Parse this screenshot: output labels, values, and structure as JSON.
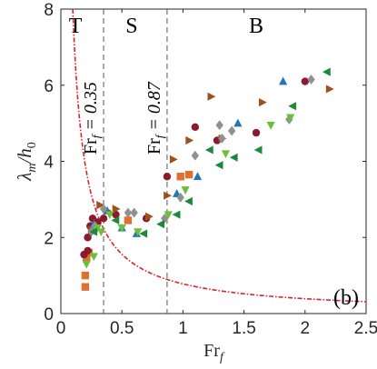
{
  "chart_data": {
    "type": "scatter",
    "xlabel_main": "Fr",
    "xlabel_sub": "f",
    "ylabel_main": "λ",
    "ylabel_sub_m": "m",
    "ylabel_div": "/h",
    "ylabel_sub_0": "0",
    "xlim": [
      0,
      2.5
    ],
    "ylim": [
      0,
      8
    ],
    "x_ticks": [
      0,
      0.5,
      1,
      1.5,
      2,
      2.5
    ],
    "x_tick_labels": [
      "0",
      "0.5",
      "1",
      "1.5",
      "2",
      "2.5"
    ],
    "y_ticks": [
      0,
      2,
      4,
      6,
      8
    ],
    "y_tick_labels": [
      "0",
      "2",
      "4",
      "6",
      "8"
    ],
    "grid": false,
    "panel_label": "(b)",
    "regions": [
      {
        "label": "T",
        "x": 0.12
      },
      {
        "label": "S",
        "x": 0.58
      },
      {
        "label": "B",
        "x": 1.6
      }
    ],
    "vlines": [
      {
        "x": 0.35,
        "text_main": "Fr",
        "text_sub": "f",
        "text_eq": " = 0.35"
      },
      {
        "x": 0.87,
        "text_main": "Fr",
        "text_sub": "f",
        "text_eq": " = 0.87"
      }
    ],
    "curve": {
      "description_coeff": 0.78,
      "x_start": 0.1,
      "x_end": 2.5,
      "color": "#e0202a"
    },
    "series": [
      {
        "marker": "square",
        "color": "#e07030",
        "points": [
          [
            0.2,
            0.7
          ],
          [
            0.2,
            1.0
          ],
          [
            0.21,
            1.45
          ],
          [
            0.23,
            1.6
          ],
          [
            0.26,
            2.3
          ],
          [
            0.55,
            2.45
          ],
          [
            0.98,
            3.6
          ],
          [
            1.05,
            3.65
          ]
        ]
      },
      {
        "marker": "circle",
        "color": "#8b1a2e",
        "points": [
          [
            0.19,
            1.55
          ],
          [
            0.22,
            1.65
          ],
          [
            0.22,
            2.0
          ],
          [
            0.24,
            2.3
          ],
          [
            0.26,
            2.5
          ],
          [
            0.3,
            2.4
          ],
          [
            0.35,
            2.5
          ],
          [
            0.45,
            2.6
          ],
          [
            0.7,
            2.5
          ],
          [
            0.87,
            3.6
          ],
          [
            1.1,
            4.9
          ],
          [
            1.28,
            4.55
          ],
          [
            1.6,
            4.75
          ],
          [
            2.0,
            6.1
          ]
        ]
      },
      {
        "marker": "triangle-right",
        "color": "#a0501a",
        "points": [
          [
            0.25,
            2.2
          ],
          [
            0.32,
            2.85
          ],
          [
            0.38,
            2.7
          ],
          [
            0.45,
            2.75
          ],
          [
            0.72,
            2.55
          ],
          [
            0.87,
            3.1
          ],
          [
            0.92,
            4.05
          ],
          [
            1.05,
            4.55
          ],
          [
            1.23,
            5.7
          ],
          [
            1.32,
            4.6
          ],
          [
            1.65,
            5.55
          ],
          [
            2.2,
            5.9
          ]
        ]
      },
      {
        "marker": "triangle-up",
        "color": "#1f77b4",
        "points": [
          [
            0.27,
            2.35
          ],
          [
            0.38,
            2.7
          ],
          [
            0.5,
            2.25
          ],
          [
            0.62,
            2.1
          ],
          [
            0.95,
            3.15
          ],
          [
            1.12,
            3.6
          ],
          [
            1.45,
            5.0
          ],
          [
            1.82,
            6.1
          ]
        ]
      },
      {
        "marker": "diamond",
        "color": "#909090",
        "points": [
          [
            0.25,
            2.15
          ],
          [
            0.28,
            2.3
          ],
          [
            0.35,
            2.75
          ],
          [
            0.55,
            2.65
          ],
          [
            0.6,
            2.65
          ],
          [
            0.85,
            2.5
          ],
          [
            0.98,
            3.05
          ],
          [
            1.1,
            4.15
          ],
          [
            1.3,
            4.95
          ],
          [
            1.32,
            4.6
          ],
          [
            1.4,
            4.8
          ],
          [
            1.87,
            5.1
          ],
          [
            2.05,
            6.15
          ]
        ]
      },
      {
        "marker": "triangle-down",
        "color": "#6cbf3c",
        "points": [
          [
            0.21,
            1.3
          ],
          [
            0.27,
            1.5
          ],
          [
            0.3,
            2.25
          ],
          [
            0.33,
            2.15
          ],
          [
            0.4,
            2.6
          ],
          [
            0.5,
            2.25
          ],
          [
            0.63,
            2.15
          ],
          [
            0.88,
            2.6
          ],
          [
            1.02,
            3.25
          ],
          [
            1.35,
            4.2
          ],
          [
            1.72,
            4.95
          ],
          [
            1.88,
            5.15
          ]
        ]
      },
      {
        "marker": "triangle-left",
        "color": "#1a8a3a",
        "points": [
          [
            0.27,
            2.15
          ],
          [
            0.45,
            2.45
          ],
          [
            0.68,
            2.1
          ],
          [
            0.82,
            2.35
          ],
          [
            0.95,
            2.6
          ],
          [
            1.05,
            2.95
          ],
          [
            1.22,
            4.3
          ],
          [
            1.3,
            3.9
          ],
          [
            1.42,
            4.1
          ],
          [
            1.62,
            4.3
          ],
          [
            1.9,
            5.45
          ],
          [
            2.18,
            6.35
          ]
        ]
      }
    ]
  }
}
